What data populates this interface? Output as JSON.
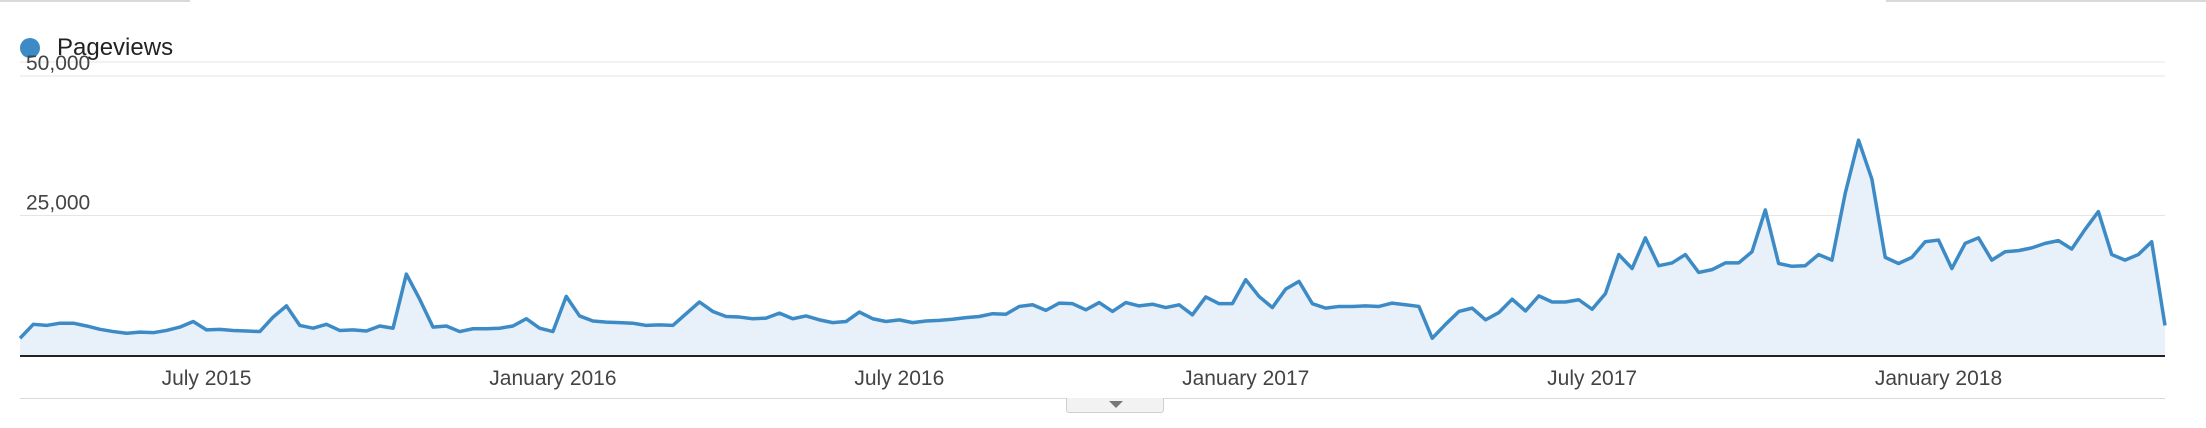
{
  "legend": {
    "label": "Pageviews",
    "color": "#3d8bc6"
  },
  "colors": {
    "line": "#3d8bc6",
    "fill": "#e8f1fa",
    "grid": "#e5e5e5",
    "axis": "#222222"
  },
  "icons": {
    "expand": "chevron-down-icon"
  },
  "chart_data": {
    "type": "area",
    "title": "",
    "xlabel": "",
    "ylabel": "",
    "ylim": [
      0,
      50000
    ],
    "yticks": [
      {
        "value": 50000,
        "label": "50,000"
      },
      {
        "value": 25000,
        "label": "25,000"
      }
    ],
    "xticks": [
      {
        "index": 14,
        "label": "July 2015"
      },
      {
        "index": 40,
        "label": "January 2016"
      },
      {
        "index": 66,
        "label": "July 2016"
      },
      {
        "index": 92,
        "label": "January 2017"
      },
      {
        "index": 118,
        "label": "July 2017"
      },
      {
        "index": 144,
        "label": "January 2018"
      }
    ],
    "grid": true,
    "legend_position": "top-left",
    "series": [
      {
        "name": "Pageviews",
        "values": [
          3000,
          5500,
          5300,
          5700,
          5700,
          5200,
          4600,
          4200,
          3900,
          4100,
          4000,
          4400,
          5000,
          6000,
          4500,
          4600,
          4400,
          4300,
          4200,
          6800,
          8800,
          5300,
          4800,
          5500,
          4400,
          4500,
          4300,
          5200,
          4800,
          14500,
          10000,
          5000,
          5200,
          4200,
          4700,
          4700,
          4800,
          5200,
          6500,
          4800,
          4200,
          10500,
          7000,
          6100,
          5900,
          5800,
          5700,
          5300,
          5400,
          5300,
          7400,
          9500,
          7800,
          6900,
          6800,
          6500,
          6600,
          7500,
          6500,
          7000,
          6300,
          5800,
          6000,
          7700,
          6500,
          6000,
          6300,
          5800,
          6100,
          6200,
          6400,
          6700,
          6900,
          7400,
          7300,
          8700,
          9000,
          8000,
          9300,
          9200,
          8100,
          9400,
          7800,
          9400,
          8800,
          9100,
          8500,
          9000,
          7200,
          10400,
          9200,
          9200,
          13500,
          10500,
          8500,
          11800,
          13200,
          9200,
          8400,
          8700,
          8700,
          8800,
          8700,
          9300,
          9000,
          8700,
          3000,
          5500,
          7800,
          8400,
          6300,
          7600,
          10000,
          7900,
          10600,
          9500,
          9500,
          9900,
          8200,
          11000,
          18000,
          15500,
          21000,
          16000,
          16500,
          18000,
          14800,
          15300,
          16500,
          16500,
          18500,
          26000,
          16400,
          15900,
          16000,
          18000,
          17000,
          29000,
          38500,
          31500,
          17500,
          16400,
          17500,
          20300,
          20600,
          15500,
          20000,
          21000,
          17000,
          18500,
          18700,
          19200,
          20000,
          20500,
          19000,
          22500,
          25700,
          18000,
          17000,
          18000,
          20300,
          5300
        ]
      }
    ]
  }
}
